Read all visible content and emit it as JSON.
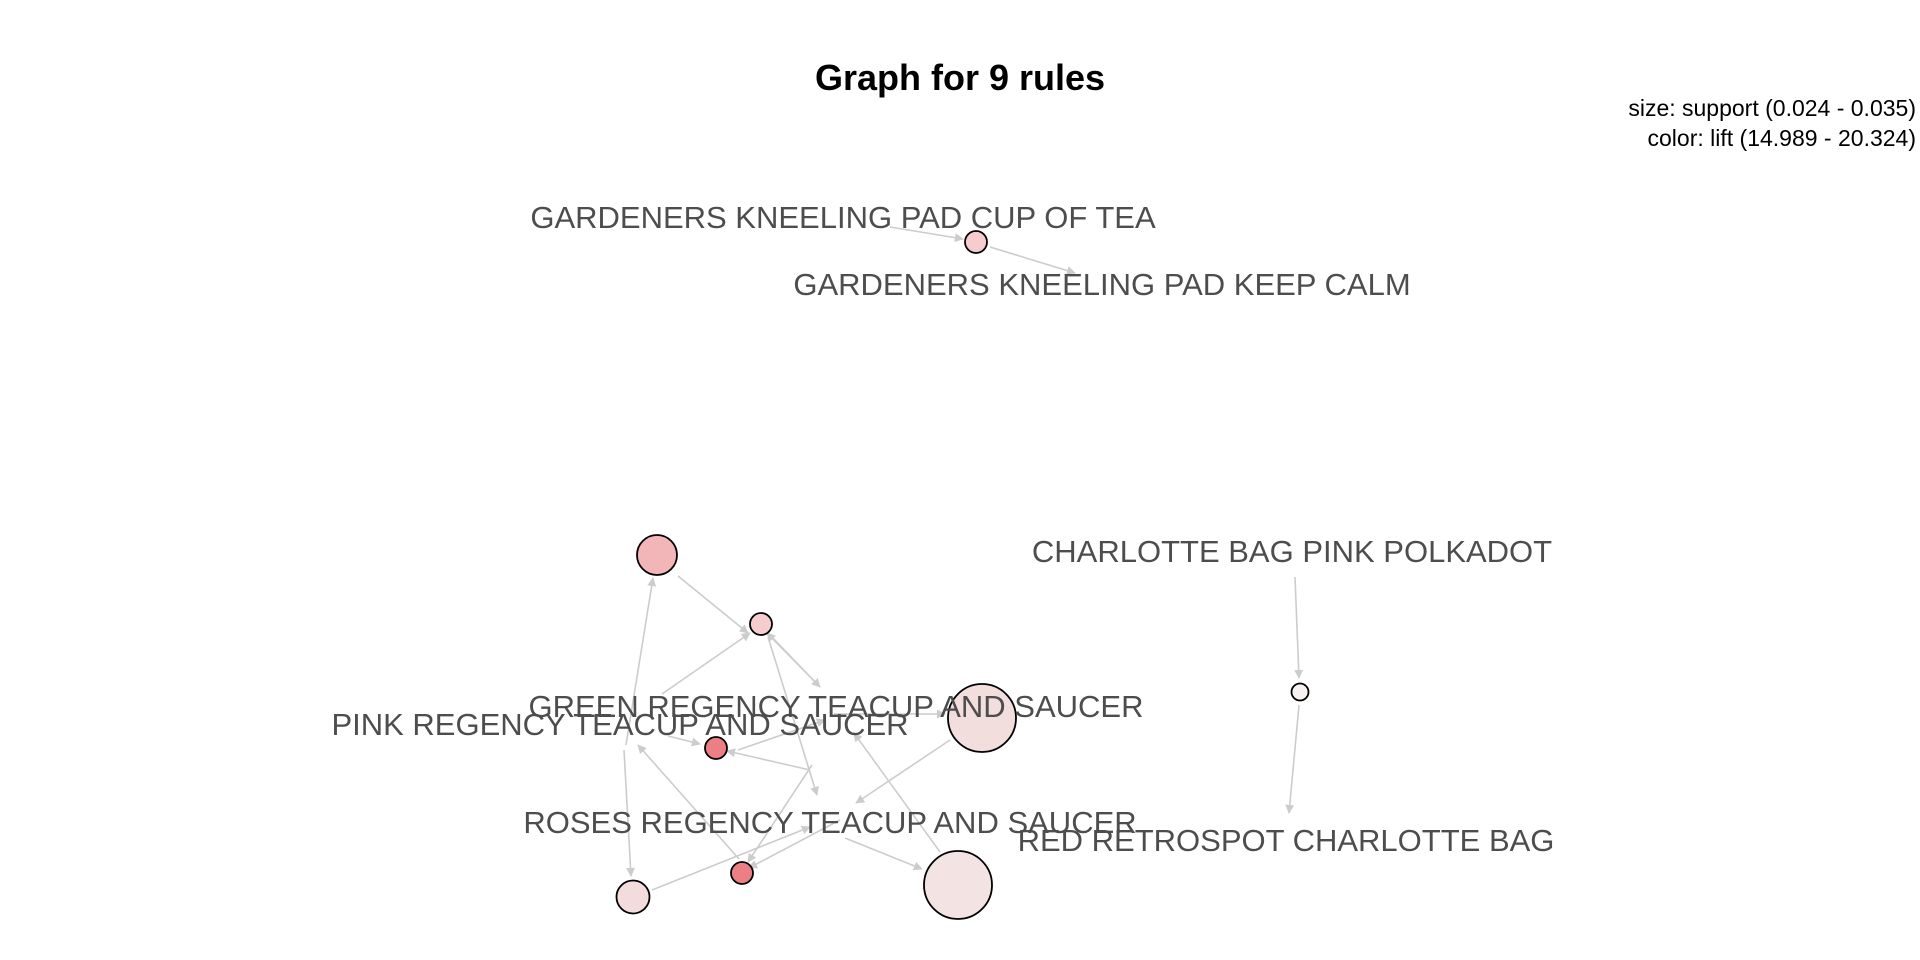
{
  "title": "Graph for 9 rules",
  "legend": {
    "size": "size: support (0.024 - 0.035)",
    "color": "color: lift (14.989 - 20.324)"
  },
  "items": [
    "GARDENERS KNEELING PAD CUP OF TEA",
    "GARDENERS KNEELING PAD KEEP CALM",
    "CHARLOTTE BAG PINK POLKADOT",
    "RED RETROSPOT CHARLOTTE BAG",
    "GREEN REGENCY TEACUP AND SAUCER",
    "PINK REGENCY TEACUP AND SAUCER",
    "ROSES REGENCY TEACUP AND SAUCER"
  ],
  "colors": {
    "edge": "#cccccc",
    "label": "#4d4d4d",
    "lift_low": "#f5e9e9",
    "lift_high": "#ec7f86"
  }
}
